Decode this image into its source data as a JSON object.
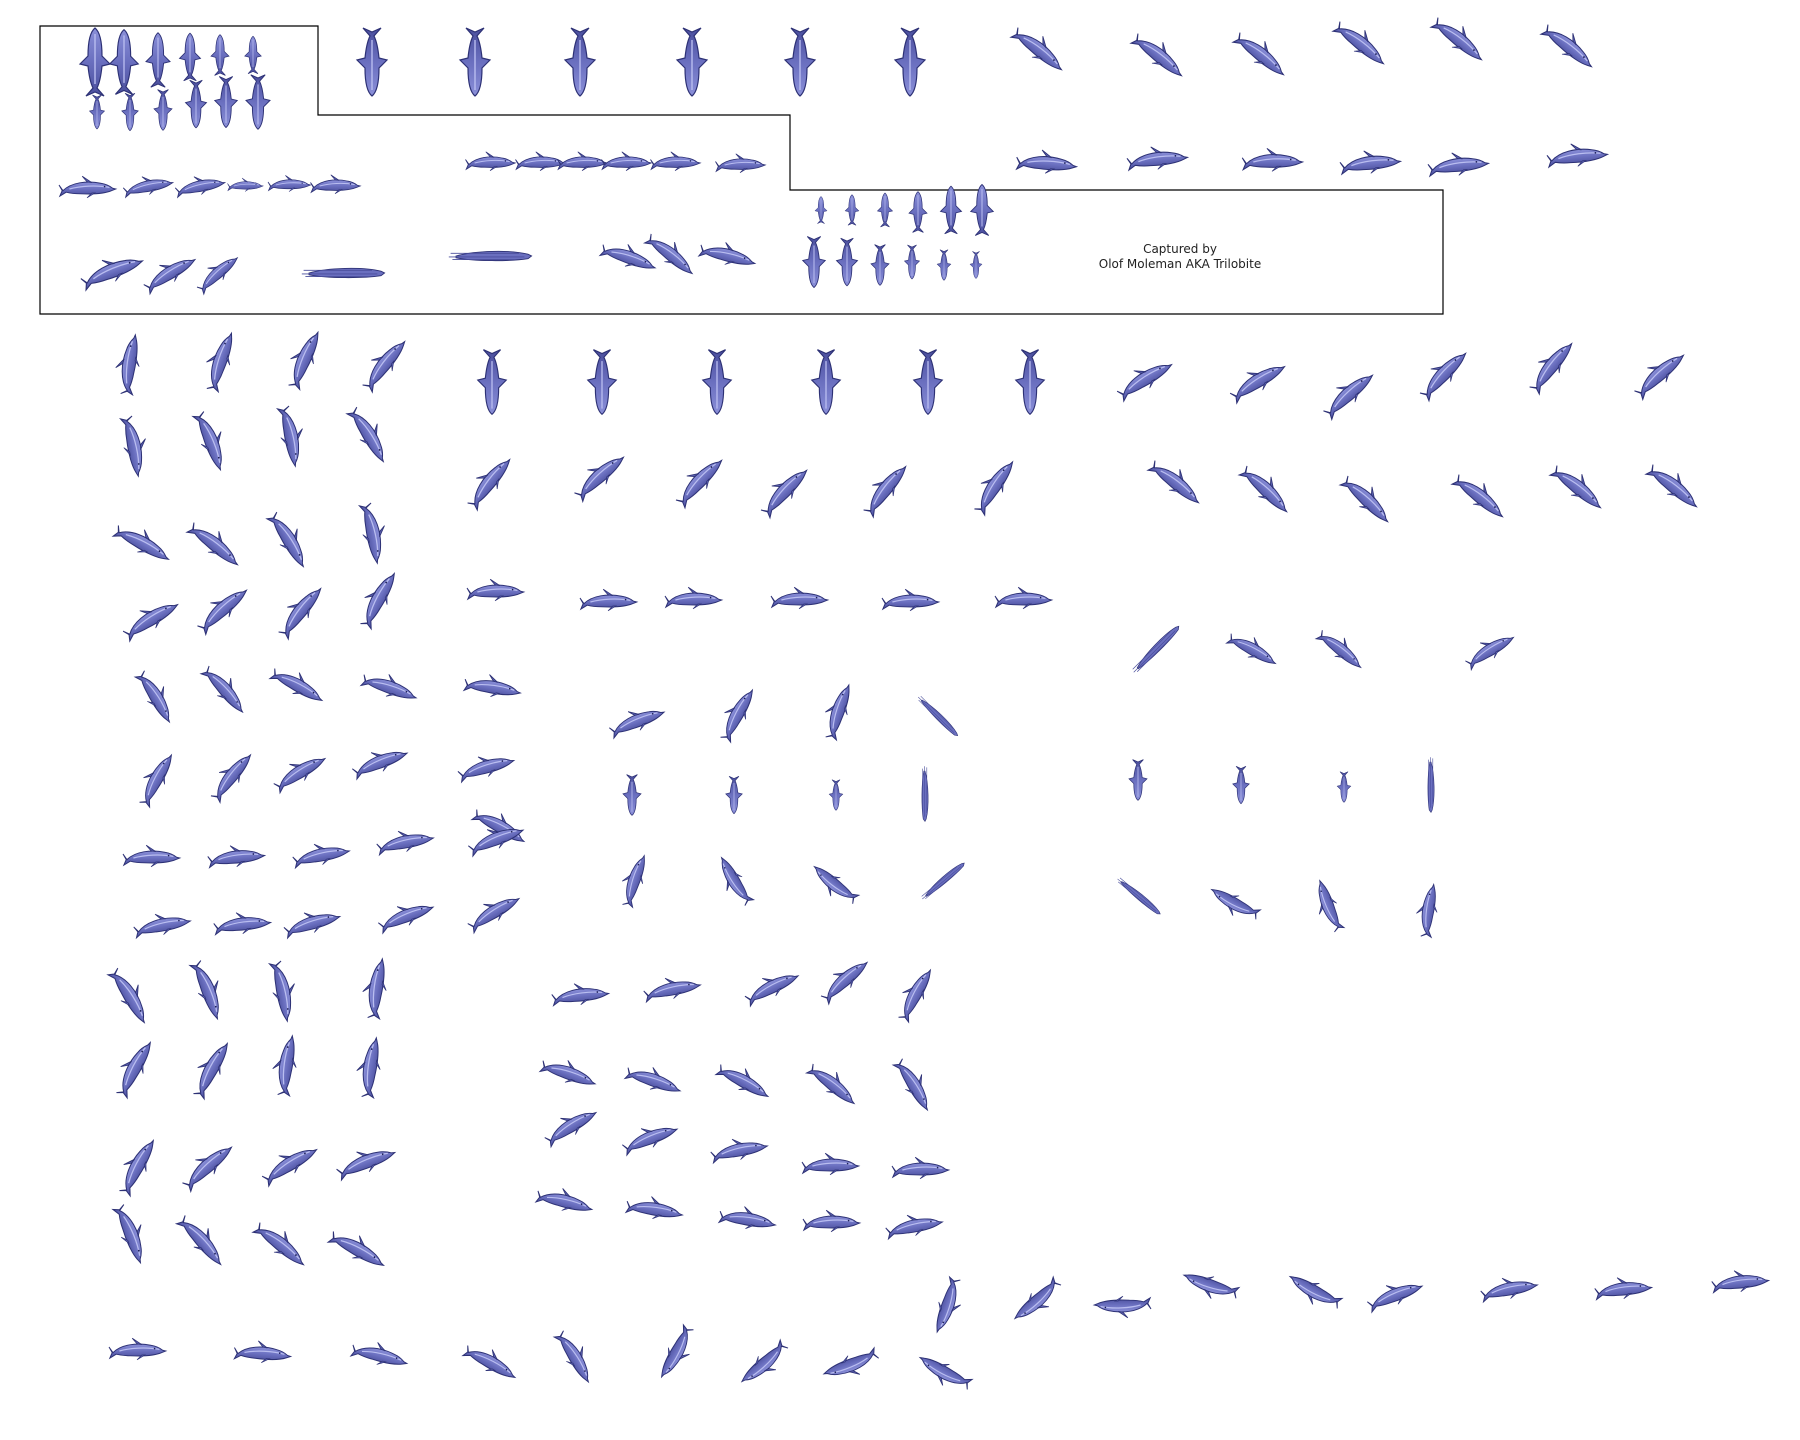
{
  "sheet": {
    "credit_line1": "Captured by",
    "credit_line2": "Olof Moleman AKA Trilobite"
  },
  "colors": {
    "background": "#ffffff",
    "sprite_fill": "#6a6fbf",
    "sprite_light": "#b9bdf0",
    "sprite_outline": "#2d3175",
    "frame_line": "#000000"
  },
  "sprite_subject": "dolphin-icon"
}
